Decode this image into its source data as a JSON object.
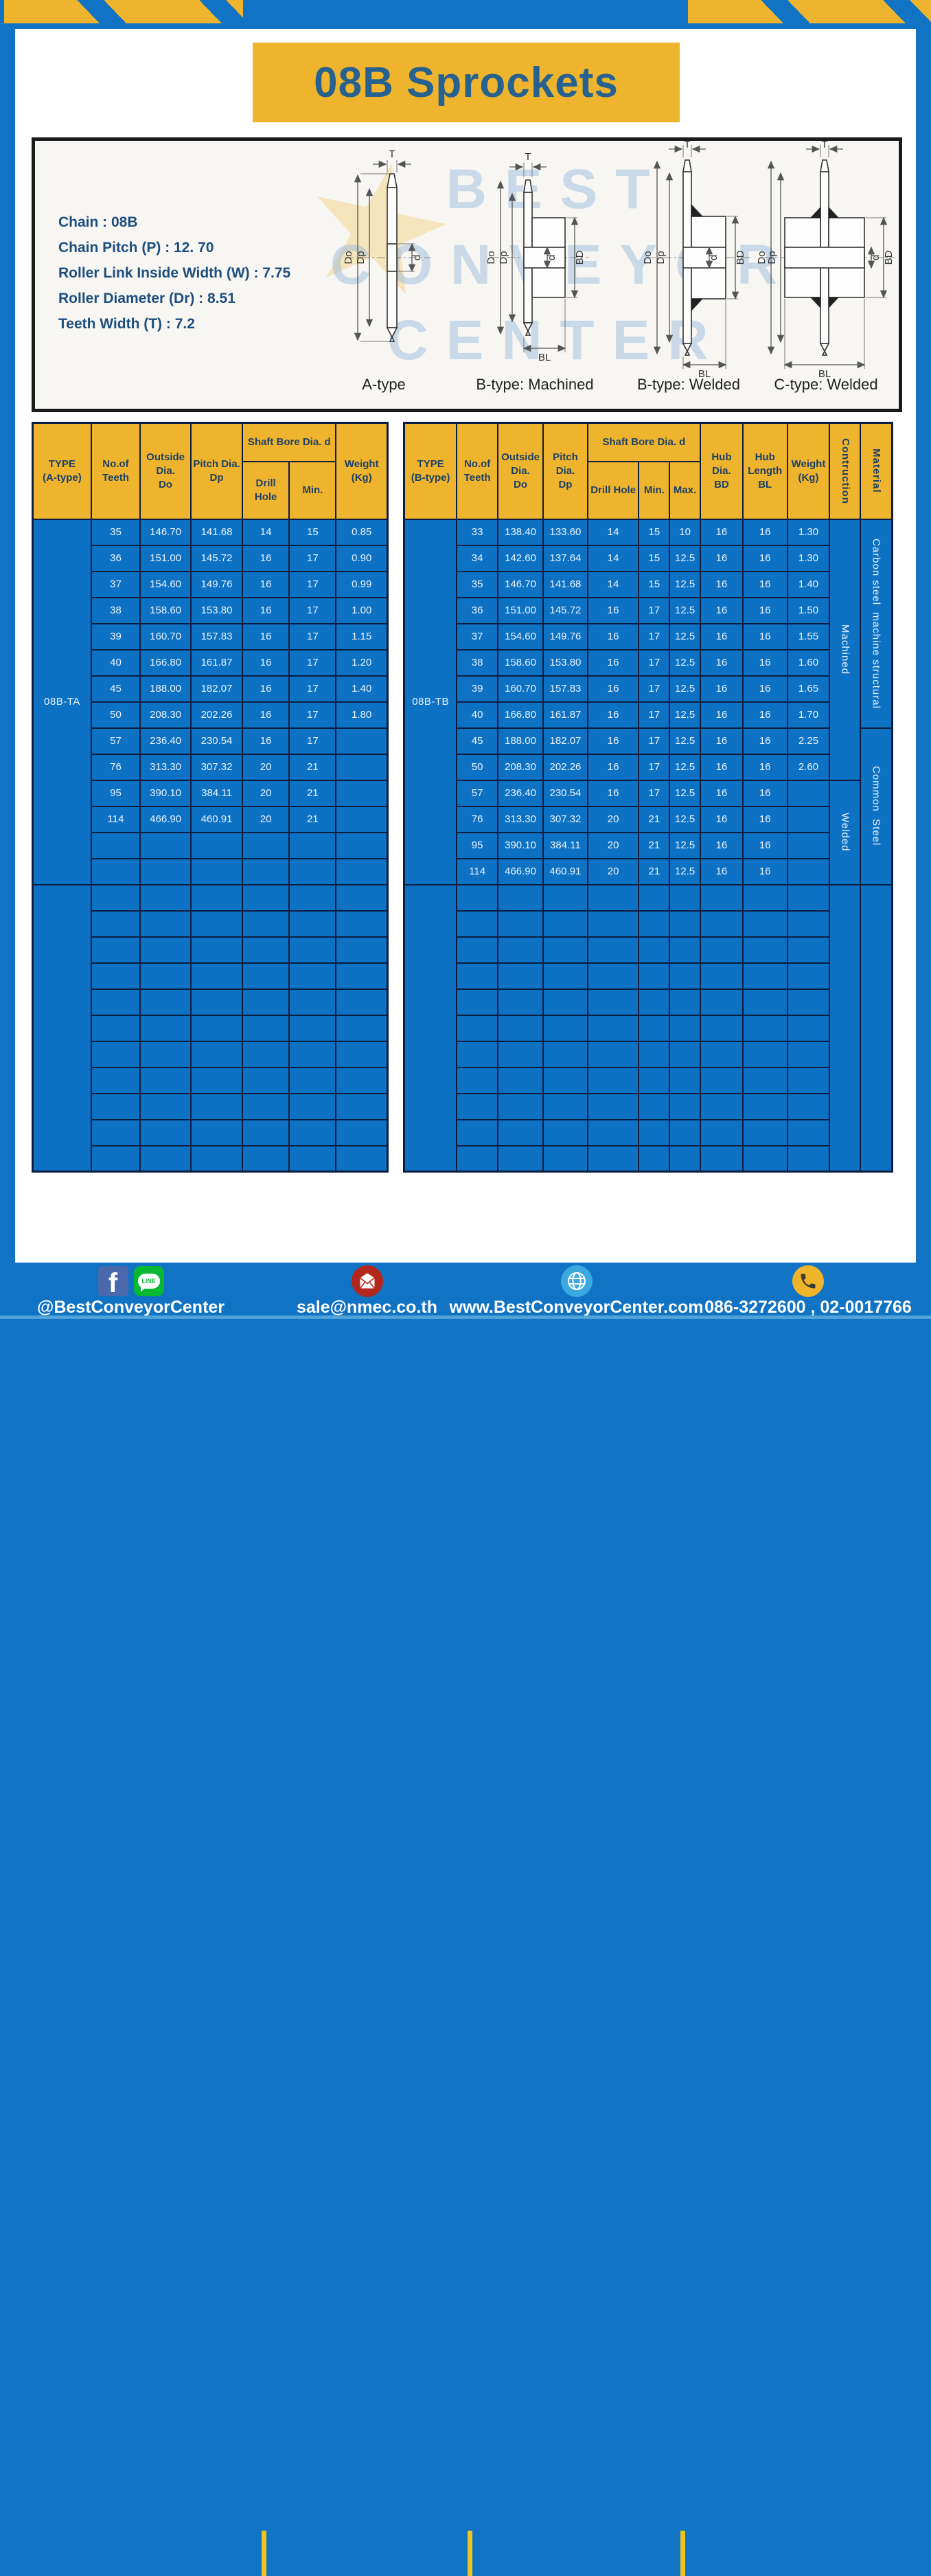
{
  "title": "08B Sprockets",
  "specs": {
    "lines": [
      "Chain : 08B",
      "Chain Pitch (P) : 12. 70",
      "Roller Link Inside Width (W) : 7.75",
      "Roller Diameter (Dr) : 8.51",
      "Teeth Width (T) : 7.2"
    ]
  },
  "diagram": {
    "captions": [
      "A-type",
      "B-type: Machined",
      "B-type: Welded",
      "C-type: Welded"
    ],
    "dims": {
      "T": "T",
      "Do": "Do",
      "Dp": "Dp",
      "d": "d",
      "BD": "BD",
      "BL": "BL"
    },
    "watermark": [
      "BEST",
      "CONVEYOR",
      "CENTER"
    ],
    "watermark_star": "★"
  },
  "tables": {
    "left": {
      "cols": [
        16.5,
        13.8,
        14.3,
        14.5,
        13.2,
        13.2,
        14.5
      ],
      "header": [
        [
          {
            "t": "TYPE\n(A-type)",
            "rs": 2
          },
          {
            "t": "No.of\nTeeth",
            "rs": 2
          },
          {
            "t": "Outside\nDia.\nDo",
            "rs": 2
          },
          {
            "t": "Pitch Dia.\nDp",
            "rs": 2
          },
          {
            "t": "Shaft Bore Dia. d",
            "cs": 2
          },
          {
            "t": "Weight\n(Kg)",
            "rs": 2
          }
        ],
        [
          {
            "t": "Drill Hole"
          },
          {
            "t": "Min."
          }
        ]
      ],
      "rows": [
        [
          {
            "t": "08B-TA",
            "rs": 14,
            "c": "type"
          },
          "35",
          "146.70",
          "141.68",
          "14",
          "15",
          "0.85"
        ],
        [
          "36",
          "151.00",
          "145.72",
          "16",
          "17",
          "0.90"
        ],
        [
          "37",
          "154.60",
          "149.76",
          "16",
          "17",
          "0.99"
        ],
        [
          "38",
          "158.60",
          "153.80",
          "16",
          "17",
          "1.00"
        ],
        [
          "39",
          "160.70",
          "157.83",
          "16",
          "17",
          "1.15"
        ],
        [
          "40",
          "166.80",
          "161.87",
          "16",
          "17",
          "1.20"
        ],
        [
          "45",
          "188.00",
          "182.07",
          "16",
          "17",
          "1.40"
        ],
        [
          "50",
          "208.30",
          "202.26",
          "16",
          "17",
          "1.80"
        ],
        [
          "57",
          "236.40",
          "230.54",
          "16",
          "17",
          ""
        ],
        [
          "76",
          "313.30",
          "307.32",
          "20",
          "21",
          ""
        ],
        [
          "95",
          "390.10",
          "384.11",
          "20",
          "21",
          ""
        ],
        [
          "114",
          "466.90",
          "460.91",
          "20",
          "21",
          ""
        ],
        [
          "",
          "",
          "",
          "",
          "",
          ""
        ],
        [
          "",
          "",
          "",
          "",
          "",
          ""
        ],
        [
          {
            "t": "",
            "rs": 11,
            "c": "type"
          },
          "",
          "",
          "",
          "",
          "",
          ""
        ],
        [
          "",
          "",
          "",
          "",
          "",
          ""
        ],
        [
          "",
          "",
          "",
          "",
          "",
          ""
        ],
        [
          "",
          "",
          "",
          "",
          "",
          ""
        ],
        [
          "",
          "",
          "",
          "",
          "",
          ""
        ],
        [
          "",
          "",
          "",
          "",
          "",
          ""
        ],
        [
          "",
          "",
          "",
          "",
          "",
          ""
        ],
        [
          "",
          "",
          "",
          "",
          "",
          ""
        ],
        [
          "",
          "",
          "",
          "",
          "",
          ""
        ],
        [
          "",
          "",
          "",
          "",
          "",
          ""
        ],
        [
          "",
          "",
          "",
          "",
          "",
          ""
        ]
      ]
    },
    "right": {
      "cols": [
        10.8,
        8.4,
        9.3,
        9.1,
        10.5,
        6.3,
        6.3,
        8.7,
        9.1,
        8.7,
        6.3,
        6.5
      ],
      "header": [
        [
          {
            "t": "TYPE\n(B-type)",
            "rs": 2
          },
          {
            "t": "No.of\nTeeth",
            "rs": 2
          },
          {
            "t": "Outside\nDia.\nDo",
            "rs": 2
          },
          {
            "t": "Pitch Dia.\nDp",
            "rs": 2
          },
          {
            "t": "Shaft Bore Dia. d",
            "cs": 3
          },
          {
            "t": "Hub Dia.\nBD",
            "rs": 2
          },
          {
            "t": "Hub\nLength\nBL",
            "rs": 2
          },
          {
            "t": "Weight\n(Kg)",
            "rs": 2
          },
          {
            "t": "Contruction",
            "rs": 2,
            "v": 1
          },
          {
            "t": "Material",
            "rs": 2,
            "v": 1
          }
        ],
        [
          {
            "t": "Drill Hole"
          },
          {
            "t": "Min."
          },
          {
            "t": "Max."
          }
        ]
      ],
      "rows": [
        [
          {
            "t": "08B-TB",
            "rs": 14,
            "c": "type"
          },
          "33",
          "138.40",
          "133.60",
          "14",
          "15",
          "10",
          "16",
          "16",
          "1.30",
          {
            "t": "Machined",
            "rs": 10,
            "v": 1
          },
          {
            "t": "Carbon steel  machine structural",
            "rs": 8,
            "v": 1
          }
        ],
        [
          "34",
          "142.60",
          "137.64",
          "14",
          "15",
          "12.5",
          "16",
          "16",
          "1.30"
        ],
        [
          "35",
          "146.70",
          "141.68",
          "14",
          "15",
          "12.5",
          "16",
          "16",
          "1.40"
        ],
        [
          "36",
          "151.00",
          "145.72",
          "16",
          "17",
          "12.5",
          "16",
          "16",
          "1.50"
        ],
        [
          "37",
          "154.60",
          "149.76",
          "16",
          "17",
          "12.5",
          "16",
          "16",
          "1.55"
        ],
        [
          "38",
          "158.60",
          "153.80",
          "16",
          "17",
          "12.5",
          "16",
          "16",
          "1.60"
        ],
        [
          "39",
          "160.70",
          "157.83",
          "16",
          "17",
          "12.5",
          "16",
          "16",
          "1.65"
        ],
        [
          "40",
          "166.80",
          "161.87",
          "16",
          "17",
          "12.5",
          "16",
          "16",
          "1.70"
        ],
        [
          "45",
          "188.00",
          "182.07",
          "16",
          "17",
          "12.5",
          "16",
          "16",
          "2.25",
          {
            "t": "Common  Steel",
            "rs": 6,
            "v": 1
          }
        ],
        [
          "50",
          "208.30",
          "202.26",
          "16",
          "17",
          "12.5",
          "16",
          "16",
          "2.60"
        ],
        [
          "57",
          "236.40",
          "230.54",
          "16",
          "17",
          "12.5",
          "16",
          "16",
          "",
          {
            "t": "Welded",
            "rs": 4,
            "v": 1
          }
        ],
        [
          "76",
          "313.30",
          "307.32",
          "20",
          "21",
          "12.5",
          "16",
          "16",
          ""
        ],
        [
          "95",
          "390.10",
          "384.11",
          "20",
          "21",
          "12.5",
          "16",
          "16",
          ""
        ],
        [
          "114",
          "466.90",
          "460.91",
          "20",
          "21",
          "12.5",
          "16",
          "16",
          ""
        ],
        [
          {
            "t": "",
            "rs": 11,
            "c": "type"
          },
          "",
          "",
          "",
          "",
          "",
          "",
          "",
          "",
          "",
          {
            "t": "",
            "rs": 11,
            "v": 1
          },
          {
            "t": "",
            "rs": 11,
            "v": 1
          }
        ],
        [
          "",
          "",
          "",
          "",
          "",
          "",
          "",
          "",
          ""
        ],
        [
          "",
          "",
          "",
          "",
          "",
          "",
          "",
          "",
          ""
        ],
        [
          "",
          "",
          "",
          "",
          "",
          "",
          "",
          "",
          ""
        ],
        [
          "",
          "",
          "",
          "",
          "",
          "",
          "",
          "",
          ""
        ],
        [
          "",
          "",
          "",
          "",
          "",
          "",
          "",
          "",
          ""
        ],
        [
          "",
          "",
          "",
          "",
          "",
          "",
          "",
          "",
          ""
        ],
        [
          "",
          "",
          "",
          "",
          "",
          "",
          "",
          "",
          ""
        ],
        [
          "",
          "",
          "",
          "",
          "",
          "",
          "",
          "",
          ""
        ],
        [
          "",
          "",
          "",
          "",
          "",
          "",
          "",
          "",
          ""
        ],
        [
          "",
          "",
          "",
          "",
          "",
          "",
          "",
          "",
          ""
        ]
      ]
    }
  },
  "footer": {
    "facebook_glyph": "f",
    "line_badge": "LINE",
    "sections": [
      {
        "label": "@BestConveyorCenter"
      },
      {
        "label": "sale@nmec.co.th"
      },
      {
        "label": "www.BestConveyorCenter.com"
      },
      {
        "label": "086-3272600 , 02-0017766"
      }
    ]
  },
  "colors": {
    "brand_blue": "#1173c4",
    "brand_yellow": "#eeb42e",
    "table_blue": "#0e72c4",
    "border_navy": "#0d1d40",
    "title_text": "#27618f",
    "header_text": "#1d4066",
    "spec_text": "#1d4e7d"
  }
}
